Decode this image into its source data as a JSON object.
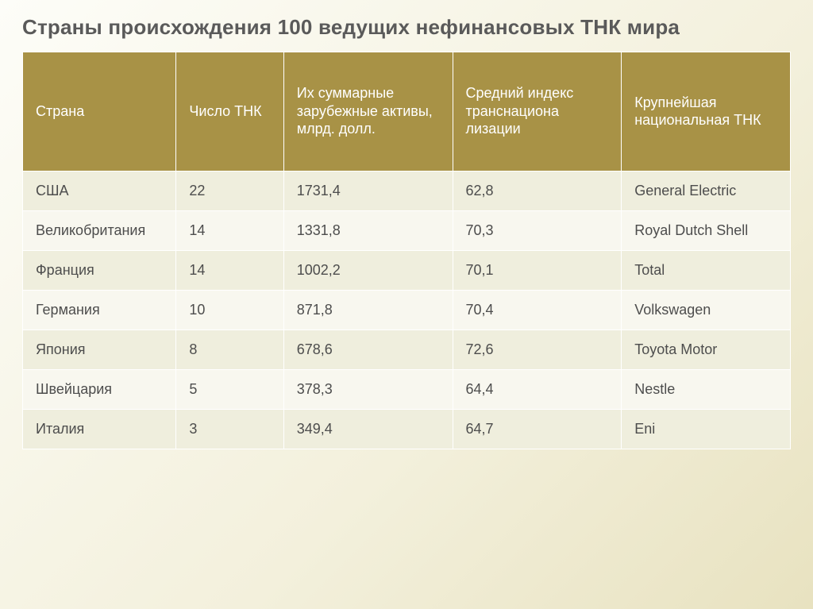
{
  "title": "Страны происхождения 100 ведущих нефинансовых ТНК мира",
  "table": {
    "header_bg": "#a89246",
    "header_text": "#ffffff",
    "row_odd_bg": "#efeedd",
    "row_even_bg": "#f8f7ef",
    "border_color": "#ffffff",
    "columns": [
      "Страна",
      "Число ТНК",
      "Их суммарные зарубежные активы, млрд. долл.",
      "Средний индекс транснациона лизации",
      "Крупнейшая национальная ТНК"
    ],
    "rows": [
      [
        "США",
        "22",
        "1731,4",
        "62,8",
        "General Electric"
      ],
      [
        "Великобритания",
        "14",
        "1331,8",
        "70,3",
        "Royal Dutch Shell"
      ],
      [
        "Франция",
        "14",
        "1002,2",
        "70,1",
        "Total"
      ],
      [
        "Германия",
        "10",
        "871,8",
        "70,4",
        "Volkswagen"
      ],
      [
        "Япония",
        "8",
        "678,6",
        "72,6",
        "Toyota Motor"
      ],
      [
        "Швейцария",
        "5",
        "378,3",
        "64,4",
        "Nestle"
      ],
      [
        "Италия",
        "3",
        "349,4",
        "64,7",
        "Eni"
      ]
    ],
    "col_widths_pct": [
      20,
      14,
      22,
      22,
      22
    ]
  }
}
